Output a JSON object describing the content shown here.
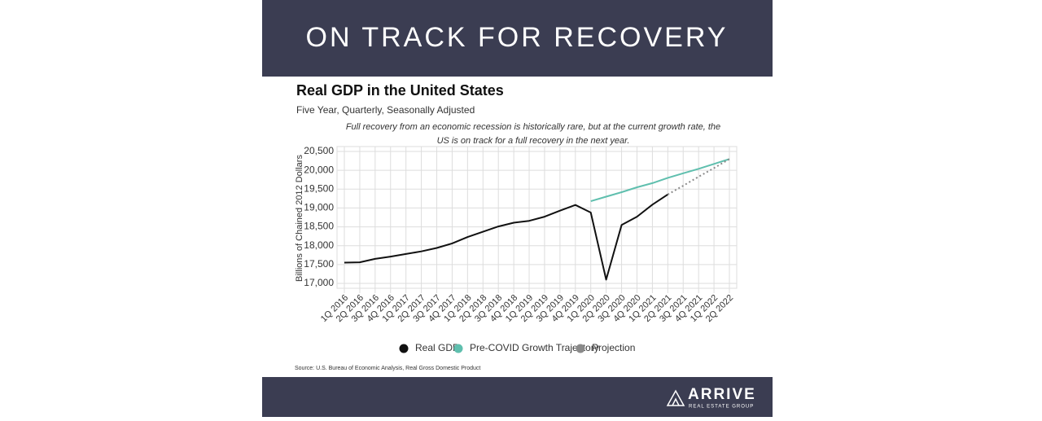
{
  "header": {
    "title": "ON TRACK FOR RECOVERY"
  },
  "chart_data": {
    "type": "line",
    "title": "Real GDP in the United States",
    "subtitle": "Five Year, Quarterly, Seasonally Adjusted",
    "annotation": [
      "Full recovery from an economic recession is historically rare, but at the current growth rate, the",
      "US is on track for a full recovery in the next year."
    ],
    "y_label": "Billions of Chained 2012 Dollars",
    "categories": [
      "1Q 2016",
      "2Q 2016",
      "3Q 2016",
      "4Q 2016",
      "1Q 2017",
      "2Q 2017",
      "3Q 2017",
      "4Q 2017",
      "1Q 2018",
      "2Q 2018",
      "3Q 2018",
      "4Q 2018",
      "1Q 2019",
      "2Q 2019",
      "3Q 2019",
      "4Q 2019",
      "1Q 2020",
      "2Q 2020",
      "3Q 2020",
      "4Q 2020",
      "1Q 2021",
      "2Q 2021",
      "3Q 2021",
      "4Q 2021",
      "1Q 2022",
      "2Q 2022"
    ],
    "series": [
      {
        "name": "Real GDP",
        "color": "#111111",
        "style": "solid",
        "values": [
          17550,
          17560,
          17650,
          17710,
          17780,
          17850,
          17940,
          18060,
          18230,
          18370,
          18510,
          18610,
          18660,
          18770,
          18930,
          19080,
          18880,
          17100,
          18550,
          18770,
          19090,
          19360,
          null,
          null,
          null,
          null
        ]
      },
      {
        "name": "Pre-COVID Growth Trajectory",
        "color": "#5fbfae",
        "style": "solid",
        "values": [
          null,
          null,
          null,
          null,
          null,
          null,
          null,
          null,
          null,
          null,
          null,
          null,
          null,
          null,
          null,
          null,
          19180,
          19300,
          19420,
          19550,
          19660,
          19800,
          19920,
          20040,
          20170,
          20300
        ]
      },
      {
        "name": "Projection",
        "color": "#8a8a8a",
        "style": "dotted",
        "values": [
          null,
          null,
          null,
          null,
          null,
          null,
          null,
          null,
          null,
          null,
          null,
          null,
          null,
          null,
          null,
          null,
          null,
          null,
          null,
          null,
          null,
          19360,
          19590,
          19830,
          20060,
          20300
        ]
      }
    ],
    "ylim": [
      17000,
      20500
    ],
    "yticks": [
      {
        "value": 17000,
        "label": "17,000"
      },
      {
        "value": 17500,
        "label": "17,500"
      },
      {
        "value": 18000,
        "label": "18,000"
      },
      {
        "value": 18500,
        "label": "18,500"
      },
      {
        "value": 19000,
        "label": "19,000"
      },
      {
        "value": 19500,
        "label": "19,500"
      },
      {
        "value": 20000,
        "label": "20,000"
      },
      {
        "value": 20500,
        "label": "20,500"
      }
    ],
    "grid": true,
    "source": "Source:  U.S. Bureau of Economic Analysis, Real Gross Domestic Product"
  },
  "footer": {
    "logo": "ARRIVE",
    "tagline": "REAL ESTATE GROUP"
  }
}
